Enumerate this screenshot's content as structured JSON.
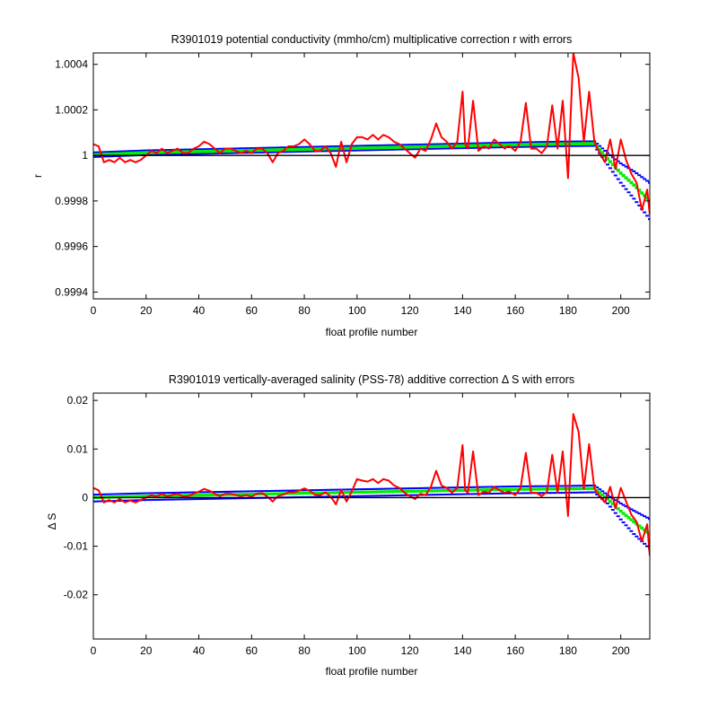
{
  "chart_data": [
    {
      "type": "line",
      "title": "R3901019 potential conductivity (mmho/cm) multiplicative correction r with errors",
      "xlabel": "float profile number",
      "ylabel": "r",
      "xlim": [
        0,
        211
      ],
      "ylim": [
        0.99937,
        1.00045
      ],
      "xticks": [
        0,
        20,
        40,
        60,
        80,
        100,
        120,
        140,
        160,
        180,
        200
      ],
      "yticks": [
        0.9994,
        0.9996,
        0.9998,
        1,
        1.0002,
        1.0004
      ],
      "ytick_labels": [
        "0.9994",
        "0.9996",
        "0.9998",
        "1",
        "1.0002",
        "1.0004"
      ],
      "xtick_labels": [
        "0",
        "20",
        "40",
        "60",
        "80",
        "100",
        "120",
        "140",
        "160",
        "180",
        "200"
      ],
      "reference_y": 1,
      "grid": false,
      "series": [
        {
          "role": "fit_error",
          "color": "#0000ff",
          "x": [
            0,
            20,
            40,
            60,
            80,
            100,
            120,
            140,
            160,
            180,
            190,
            195,
            200,
            205,
            211
          ],
          "upper": [
            1.000013,
            1.000022,
            1.000027,
            1.000032,
            1.000037,
            1.000042,
            1.000047,
            1.000052,
            1.000057,
            1.000061,
            1.000062,
            1.00001,
            0.999965,
            0.99993,
            0.99988
          ],
          "lower": [
            0.999993,
            1.000002,
            1.000007,
            1.000012,
            1.000017,
            1.000022,
            1.000027,
            1.000032,
            1.000037,
            1.000041,
            1.000042,
            0.99996,
            0.99988,
            0.99981,
            0.99972
          ]
        },
        {
          "role": "fit",
          "color": "#00ee00",
          "x": [
            0,
            20,
            40,
            60,
            80,
            100,
            120,
            140,
            160,
            180,
            190,
            195,
            200,
            205,
            211
          ],
          "y": [
            1.000003,
            1.000012,
            1.000017,
            1.000022,
            1.000027,
            1.000032,
            1.000037,
            1.000042,
            1.000047,
            1.000051,
            1.000052,
            0.999985,
            0.999922,
            0.99987,
            0.9998
          ],
          "band": 7e-06
        },
        {
          "role": "data",
          "color": "#ff0000",
          "x": [
            0,
            2,
            4,
            6,
            8,
            10,
            12,
            14,
            16,
            18,
            20,
            22,
            24,
            26,
            28,
            30,
            32,
            34,
            36,
            38,
            40,
            42,
            44,
            46,
            48,
            50,
            52,
            54,
            56,
            58,
            60,
            62,
            64,
            66,
            68,
            70,
            72,
            74,
            76,
            78,
            80,
            82,
            84,
            86,
            88,
            90,
            92,
            94,
            96,
            98,
            100,
            102,
            104,
            106,
            108,
            110,
            112,
            114,
            116,
            118,
            120,
            122,
            124,
            126,
            128,
            130,
            132,
            134,
            136,
            138,
            140,
            141,
            142,
            144,
            146,
            148,
            150,
            152,
            154,
            156,
            157,
            158,
            160,
            162,
            164,
            166,
            168,
            170,
            172,
            174,
            176,
            178,
            180,
            182,
            184,
            186,
            188,
            190,
            192,
            194,
            196,
            198,
            200,
            202,
            204,
            206,
            208,
            210,
            211
          ],
          "y": [
            1.00005,
            1.00004,
            0.99997,
            0.99998,
            0.99997,
            0.99999,
            0.99997,
            0.99998,
            0.99997,
            0.99998,
            1.0,
            1.00002,
            1.00001,
            1.00003,
            1.00001,
            1.00002,
            1.00003,
            1.00001,
            1.00001,
            1.00003,
            1.00004,
            1.00006,
            1.00005,
            1.00003,
            1.00001,
            1.00003,
            1.00003,
            1.00002,
            1.00001,
            1.00002,
            1.00001,
            1.00003,
            1.00003,
            1.00001,
            0.99997,
            1.00001,
            1.00002,
            1.00004,
            1.00004,
            1.00005,
            1.00007,
            1.00005,
            1.00002,
            1.00002,
            1.00004,
            1.00001,
            0.99995,
            1.00006,
            0.99997,
            1.00005,
            1.00008,
            1.00008,
            1.00007,
            1.00009,
            1.00007,
            1.00009,
            1.00008,
            1.00006,
            1.00005,
            1.00003,
            1.00001,
            0.99999,
            1.00003,
            1.00002,
            1.00007,
            1.00014,
            1.00008,
            1.00006,
            1.00003,
            1.00006,
            1.00028,
            1.00005,
            1.00003,
            1.00024,
            1.00002,
            1.00004,
            1.00003,
            1.00007,
            1.00005,
            1.00003,
            1.00004,
            1.00004,
            1.00002,
            1.00006,
            1.00023,
            1.00003,
            1.00003,
            1.00001,
            1.00004,
            1.00022,
            1.00003,
            1.00024,
            0.9999,
            1.00045,
            1.00034,
            1.00006,
            1.00028,
            1.00006,
            1.00001,
            0.99997,
            1.00007,
            0.99994,
            1.00007,
            0.99998,
            0.99992,
            0.99988,
            0.99976,
            0.99985,
            0.99974
          ]
        }
      ]
    },
    {
      "type": "line",
      "title": "R3901019 vertically-averaged salinity (PSS-78) additive correction Δ S with errors",
      "xlabel": "float profile number",
      "ylabel": "Δ S",
      "xlim": [
        0,
        211
      ],
      "ylim": [
        -0.0291,
        0.0215
      ],
      "xticks": [
        0,
        20,
        40,
        60,
        80,
        100,
        120,
        140,
        160,
        180,
        200
      ],
      "yticks": [
        -0.02,
        -0.01,
        0,
        0.01,
        0.02
      ],
      "ytick_labels": [
        "-0.02",
        "-0.01",
        "0",
        "0.01",
        "0.02"
      ],
      "xtick_labels": [
        "0",
        "20",
        "40",
        "60",
        "80",
        "100",
        "120",
        "140",
        "160",
        "180",
        "200"
      ],
      "reference_y": 0,
      "grid": false,
      "series": [
        {
          "role": "fit_error",
          "color": "#0000ff",
          "x": [
            0,
            20,
            40,
            60,
            80,
            100,
            120,
            140,
            160,
            180,
            190,
            195,
            200,
            205,
            211
          ],
          "upper": [
            0.0006,
            0.0009,
            0.0011,
            0.0013,
            0.0015,
            0.0017,
            0.0019,
            0.0021,
            0.0023,
            0.0024,
            0.0025,
            0.0005,
            -0.0012,
            -0.0027,
            -0.0044
          ],
          "lower": [
            -0.0008,
            -0.0005,
            -0.0003,
            -0.0001,
            0.0001,
            0.0003,
            0.0005,
            0.0007,
            0.0009,
            0.001,
            0.0011,
            -0.0012,
            -0.0045,
            -0.0075,
            -0.0105
          ]
        },
        {
          "role": "fit",
          "color": "#00ee00",
          "x": [
            0,
            20,
            40,
            60,
            80,
            100,
            120,
            140,
            160,
            180,
            190,
            195,
            200,
            205,
            211
          ],
          "y": [
            0.0,
            0.0003,
            0.0005,
            0.0007,
            0.0009,
            0.0011,
            0.0013,
            0.0015,
            0.0017,
            0.0018,
            0.0019,
            -0.0003,
            -0.0028,
            -0.005,
            -0.0075
          ],
          "band": 0.0003
        },
        {
          "role": "data",
          "color": "#ff0000",
          "x": [
            0,
            2,
            4,
            6,
            8,
            10,
            12,
            14,
            16,
            18,
            20,
            22,
            24,
            26,
            28,
            30,
            32,
            34,
            36,
            38,
            40,
            42,
            44,
            46,
            48,
            50,
            52,
            54,
            56,
            58,
            60,
            62,
            64,
            66,
            68,
            70,
            72,
            74,
            76,
            78,
            80,
            82,
            84,
            86,
            88,
            90,
            92,
            94,
            96,
            98,
            100,
            102,
            104,
            106,
            108,
            110,
            112,
            114,
            116,
            118,
            120,
            122,
            124,
            126,
            128,
            130,
            132,
            134,
            136,
            138,
            140,
            141,
            142,
            144,
            146,
            148,
            150,
            152,
            154,
            156,
            157,
            158,
            160,
            162,
            164,
            166,
            168,
            170,
            172,
            174,
            176,
            178,
            180,
            182,
            184,
            186,
            188,
            190,
            192,
            194,
            196,
            198,
            200,
            202,
            204,
            206,
            208,
            210,
            211
          ],
          "y": [
            0.002,
            0.0015,
            -0.001,
            -0.0005,
            -0.001,
            -0.0003,
            -0.001,
            -0.0006,
            -0.001,
            -0.0005,
            0.0,
            0.0005,
            0.0002,
            0.0008,
            0.0002,
            0.0006,
            0.0008,
            0.0002,
            0.0003,
            0.0008,
            0.0012,
            0.0018,
            0.0014,
            0.0008,
            0.0003,
            0.0008,
            0.0008,
            0.0005,
            0.0003,
            0.0005,
            0.0002,
            0.0008,
            0.0009,
            0.0002,
            -0.0008,
            0.0003,
            0.0006,
            0.0011,
            0.0011,
            0.0014,
            0.0019,
            0.0014,
            0.0006,
            0.0005,
            0.0011,
            0.0002,
            -0.0014,
            0.0016,
            -0.0008,
            0.0013,
            0.0038,
            0.0035,
            0.0033,
            0.0038,
            0.003,
            0.0038,
            0.0035,
            0.0025,
            0.002,
            0.001,
            0.0003,
            -0.0003,
            0.0008,
            0.0005,
            0.0022,
            0.0055,
            0.0025,
            0.002,
            0.001,
            0.002,
            0.0108,
            0.0015,
            0.001,
            0.0095,
            0.0005,
            0.0012,
            0.001,
            0.0022,
            0.0015,
            0.001,
            0.0012,
            0.0012,
            0.0005,
            0.002,
            0.0092,
            0.001,
            0.001,
            0.0003,
            0.0012,
            0.0088,
            0.001,
            0.0095,
            -0.0038,
            0.0172,
            0.0135,
            0.0018,
            0.011,
            0.0018,
            0.0003,
            -0.001,
            0.0022,
            -0.0022,
            0.002,
            -0.0008,
            -0.0035,
            -0.005,
            -0.009,
            -0.0055,
            -0.012
          ]
        }
      ]
    }
  ]
}
